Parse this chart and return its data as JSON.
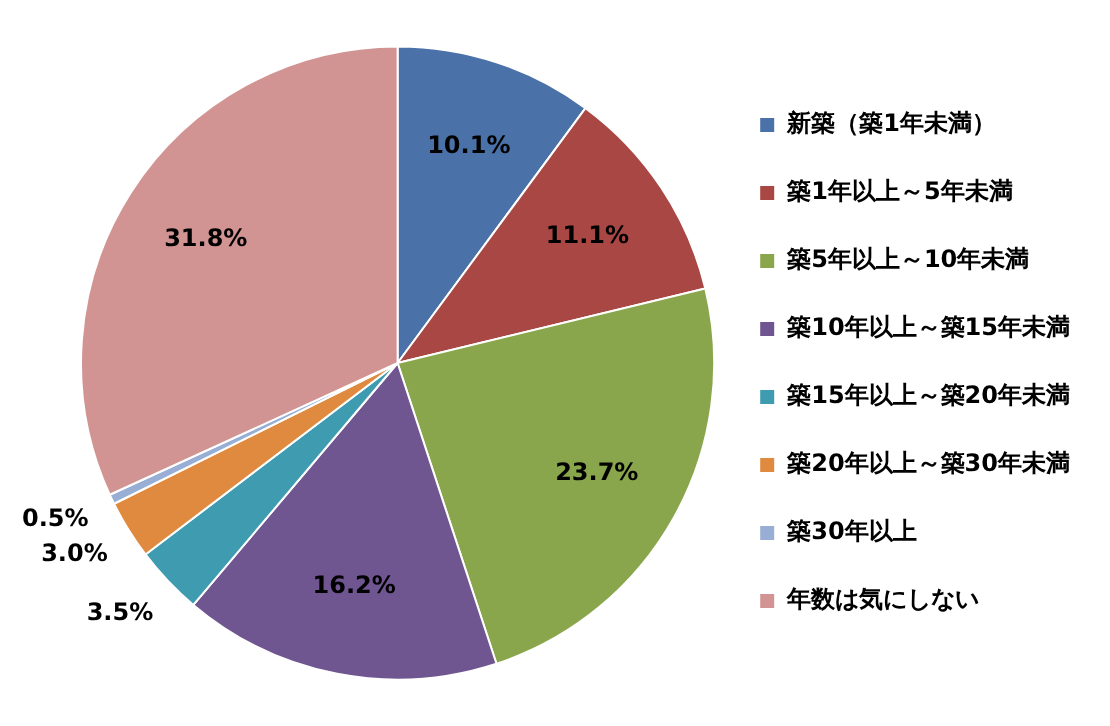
{
  "chart_data": {
    "type": "pie",
    "categories": [
      "新築（築1年未満）",
      "築1年以上～5年未満",
      "築5年以上～10年未満",
      "築10年以上～築15年未満",
      "築15年以上～築20年未満",
      "築20年以上～築30年未満",
      "築30年以上",
      "年数は気にしない"
    ],
    "values": [
      10.1,
      11.1,
      23.7,
      16.2,
      3.5,
      3.0,
      0.5,
      31.8
    ],
    "colors": [
      "#4a72a8",
      "#a84744",
      "#8aa64c",
      "#6f5690",
      "#3f9bb0",
      "#df8a3e",
      "#98aed4",
      "#d29493"
    ],
    "value_labels": [
      "10.1%",
      "11.1%",
      "23.7%",
      "16.2%",
      "3.5%",
      "3.0%",
      "0.5%",
      "31.8%"
    ],
    "legend": "right"
  }
}
